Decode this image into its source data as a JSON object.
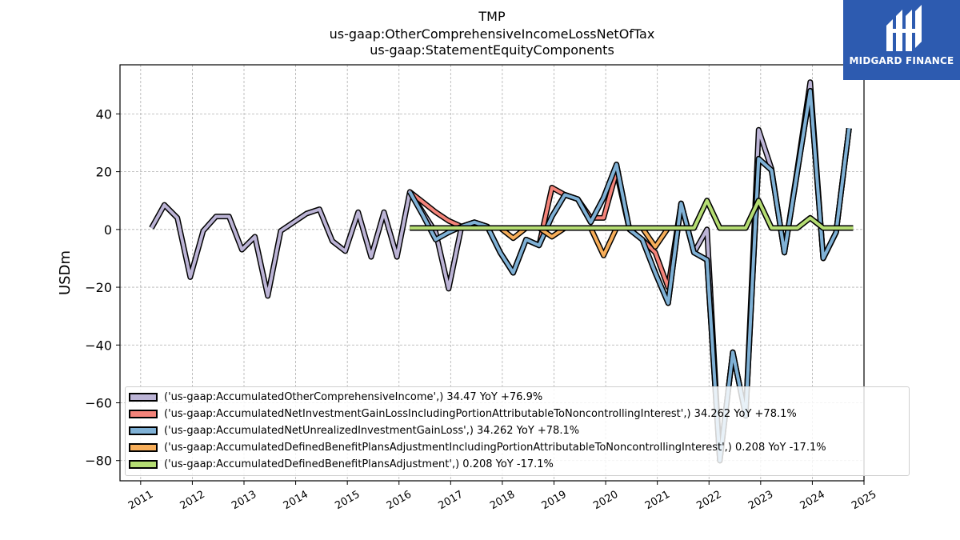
{
  "chart_data": {
    "type": "line",
    "title": [
      "TMP",
      "us-gaap:OtherComprehensiveIncomeLossNetOfTax",
      "us-gaap:StatementEquityComponents"
    ],
    "ylabel": "USDm",
    "xlabel": "",
    "xlim": [
      2010.6,
      2025.0
    ],
    "ylim": [
      -87,
      57
    ],
    "grid": true,
    "legend_placement": "lower-left",
    "x_ticks": [
      "2011",
      "2012",
      "2013",
      "2014",
      "2015",
      "2016",
      "2017",
      "2018",
      "2019",
      "2020",
      "2021",
      "2022",
      "2023",
      "2024",
      "2025"
    ],
    "y_ticks": [
      40,
      20,
      0,
      -20,
      -40,
      -60,
      -80
    ],
    "y_tick_labels": [
      "40",
      "20",
      "0",
      "−20",
      "−40",
      "−60",
      "−80"
    ],
    "series": [
      {
        "name": "('us-gaap:AccumulatedOtherComprehensiveIncome',) 34.47 YoY +76.9%",
        "color": "#bcb4d6",
        "points": [
          [
            2011.21,
            0.5
          ],
          [
            2011.46,
            8.5
          ],
          [
            2011.71,
            4
          ],
          [
            2011.96,
            -16.5
          ],
          [
            2012.21,
            -0.5
          ],
          [
            2012.46,
            4.5
          ],
          [
            2012.71,
            4.5
          ],
          [
            2012.96,
            -7
          ],
          [
            2013.21,
            -2.5
          ],
          [
            2013.46,
            -23
          ],
          [
            2013.71,
            -0.5
          ],
          [
            2013.96,
            2.5
          ],
          [
            2014.21,
            5.5
          ],
          [
            2014.46,
            7
          ],
          [
            2014.71,
            -4
          ],
          [
            2014.96,
            -7.5
          ],
          [
            2015.21,
            6
          ],
          [
            2015.46,
            -9.5
          ],
          [
            2015.71,
            6
          ],
          [
            2015.96,
            -9.5
          ],
          [
            2016.21,
            13
          ],
          [
            2016.46,
            6
          ],
          [
            2016.71,
            -1
          ],
          [
            2016.96,
            -20.5
          ],
          [
            2017.21,
            1
          ],
          [
            2017.46,
            2.5
          ],
          [
            2017.71,
            1
          ],
          [
            2017.96,
            -8
          ],
          [
            2018.21,
            -15
          ],
          [
            2018.46,
            -3.5
          ],
          [
            2018.71,
            -5.5
          ],
          [
            2018.96,
            4.5
          ],
          [
            2019.21,
            12
          ],
          [
            2019.46,
            10.5
          ],
          [
            2019.71,
            2.5
          ],
          [
            2019.96,
            11
          ],
          [
            2020.21,
            22.5
          ],
          [
            2020.46,
            0
          ],
          [
            2020.71,
            -3.5
          ],
          [
            2020.96,
            -15
          ],
          [
            2021.21,
            -25.5
          ],
          [
            2021.46,
            9
          ],
          [
            2021.71,
            -8
          ],
          [
            2021.96,
            0
          ],
          [
            2022.21,
            -80
          ],
          [
            2022.46,
            -42.5
          ],
          [
            2022.71,
            -64.5
          ],
          [
            2022.96,
            34.5
          ],
          [
            2023.21,
            21
          ],
          [
            2023.46,
            -8
          ],
          [
            2023.71,
            21
          ],
          [
            2023.96,
            51
          ],
          [
            2024.21,
            -10
          ],
          [
            2024.46,
            -1
          ],
          [
            2024.71,
            35
          ]
        ]
      },
      {
        "name": "('us-gaap:AccumulatedNetInvestmentGainLossIncludingPortionAttributableToNoncontrollingInterest',) 34.262 YoY +78.1%",
        "color": "#f4847a",
        "points": [
          [
            2016.21,
            13
          ],
          [
            2016.46,
            9.5
          ],
          [
            2016.71,
            6
          ],
          [
            2016.96,
            3
          ],
          [
            2017.21,
            1
          ],
          [
            2017.46,
            2.5
          ],
          [
            2017.71,
            1
          ],
          [
            2017.96,
            -8
          ],
          [
            2018.21,
            -15
          ],
          [
            2018.46,
            -3.5
          ],
          [
            2018.71,
            -5.5
          ],
          [
            2018.96,
            14.5
          ],
          [
            2019.21,
            12
          ],
          [
            2019.46,
            10.5
          ],
          [
            2019.71,
            4
          ],
          [
            2019.96,
            4
          ],
          [
            2020.21,
            20
          ],
          [
            2020.46,
            0
          ],
          [
            2020.71,
            -3.5
          ],
          [
            2020.96,
            -8
          ],
          [
            2021.21,
            -20
          ],
          [
            2021.46,
            9
          ],
          [
            2021.71,
            -8
          ],
          [
            2021.96,
            -10.5
          ],
          [
            2022.21,
            -80
          ],
          [
            2022.46,
            -42.5
          ],
          [
            2022.71,
            -64.5
          ],
          [
            2022.96,
            24.5
          ],
          [
            2023.21,
            20.5
          ],
          [
            2023.46,
            -8
          ],
          [
            2023.71,
            20
          ],
          [
            2023.96,
            48
          ],
          [
            2024.21,
            -10
          ],
          [
            2024.46,
            -1
          ],
          [
            2024.71,
            35
          ]
        ]
      },
      {
        "name": "('us-gaap:AccumulatedNetUnrealizedInvestmentGainLoss',) 34.262 YoY +78.1%",
        "color": "#7fb1d6",
        "points": [
          [
            2016.21,
            13
          ],
          [
            2016.46,
            5
          ],
          [
            2016.71,
            -3.5
          ],
          [
            2016.96,
            -1
          ],
          [
            2017.21,
            1
          ],
          [
            2017.46,
            2.5
          ],
          [
            2017.71,
            1
          ],
          [
            2017.96,
            -8
          ],
          [
            2018.21,
            -15
          ],
          [
            2018.46,
            -3.5
          ],
          [
            2018.71,
            -5.5
          ],
          [
            2018.96,
            4.5
          ],
          [
            2019.21,
            12
          ],
          [
            2019.46,
            10.5
          ],
          [
            2019.71,
            2.5
          ],
          [
            2019.96,
            11
          ],
          [
            2020.21,
            22.5
          ],
          [
            2020.46,
            0
          ],
          [
            2020.71,
            -3.5
          ],
          [
            2020.96,
            -15
          ],
          [
            2021.21,
            -25.5
          ],
          [
            2021.46,
            9
          ],
          [
            2021.71,
            -8
          ],
          [
            2021.96,
            -10.5
          ],
          [
            2022.21,
            -80
          ],
          [
            2022.46,
            -42.5
          ],
          [
            2022.71,
            -64.5
          ],
          [
            2022.96,
            24.5
          ],
          [
            2023.21,
            20.5
          ],
          [
            2023.46,
            -8
          ],
          [
            2023.71,
            20
          ],
          [
            2023.96,
            48
          ],
          [
            2024.21,
            -10
          ],
          [
            2024.46,
            -1
          ],
          [
            2024.71,
            35
          ]
        ]
      },
      {
        "name": "('us-gaap:AccumulatedDefinedBenefitPlansAdjustmentIncludingPortionAttributableToNoncontrollingInterest',) 0.208 YoY -17.1%",
        "color": "#f7ae5a",
        "points": [
          [
            2016.21,
            0.5
          ],
          [
            2017.96,
            0.5
          ],
          [
            2018.21,
            -3
          ],
          [
            2018.46,
            0.5
          ],
          [
            2018.71,
            0.5
          ],
          [
            2018.96,
            -2.5
          ],
          [
            2019.21,
            0.5
          ],
          [
            2019.71,
            0.5
          ],
          [
            2019.96,
            -9
          ],
          [
            2020.21,
            0.5
          ],
          [
            2020.71,
            0.5
          ],
          [
            2020.96,
            -6
          ],
          [
            2021.21,
            0.5
          ],
          [
            2021.71,
            0.5
          ],
          [
            2021.96,
            10
          ],
          [
            2022.21,
            0.5
          ],
          [
            2022.71,
            0.5
          ],
          [
            2022.96,
            10
          ],
          [
            2023.21,
            0.5
          ],
          [
            2023.71,
            0.5
          ],
          [
            2023.96,
            4
          ],
          [
            2024.21,
            0.5
          ],
          [
            2024.79,
            0.5
          ]
        ]
      },
      {
        "name": "('us-gaap:AccumulatedDefinedBenefitPlansAdjustment',) 0.208 YoY -17.1%",
        "color": "#b5dd73",
        "points": [
          [
            2016.21,
            0.5
          ],
          [
            2021.71,
            0.5
          ],
          [
            2021.96,
            10
          ],
          [
            2022.21,
            0.5
          ],
          [
            2022.71,
            0.5
          ],
          [
            2022.96,
            10
          ],
          [
            2023.21,
            0.5
          ],
          [
            2023.71,
            0.5
          ],
          [
            2023.96,
            4
          ],
          [
            2024.21,
            0.5
          ],
          [
            2024.79,
            0.5
          ]
        ]
      }
    ]
  },
  "logo": {
    "text": "MIDGARD FINANCE",
    "background": "#2d5bb0"
  }
}
